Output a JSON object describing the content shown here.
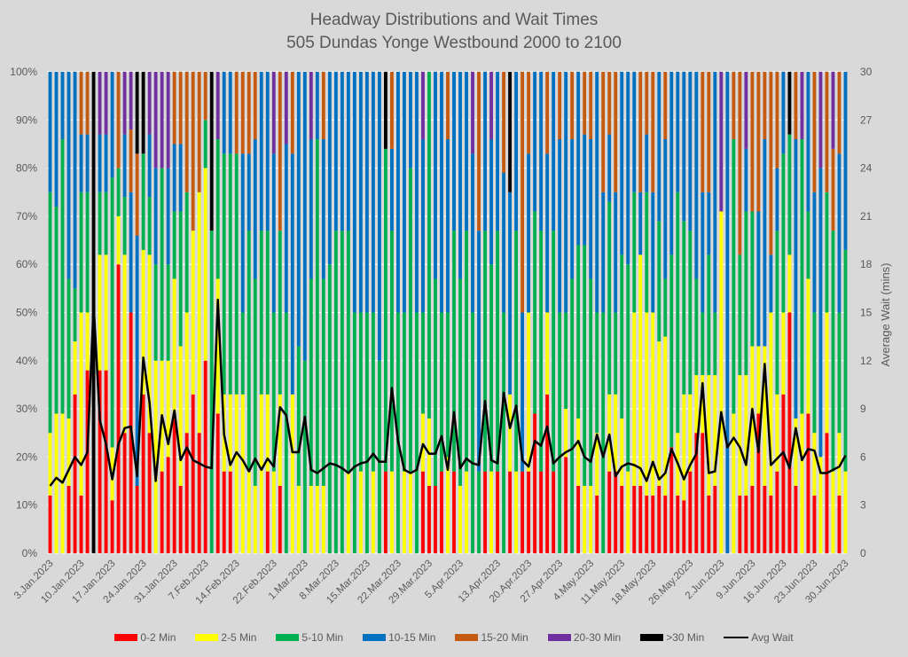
{
  "chart_data": {
    "type": "bar",
    "stacked": true,
    "title": "Headway Distributions and Wait Times",
    "subtitle": "505 Dundas  Yonge Westbound 2000 to 2100",
    "ylabel_left": "",
    "ylabel_right": "Average Wait (mins)",
    "ylim_left": [
      0,
      100
    ],
    "ylim_right": [
      0,
      30
    ],
    "left_ticks": [
      "0%",
      "10%",
      "20%",
      "30%",
      "40%",
      "50%",
      "60%",
      "70%",
      "80%",
      "90%",
      "100%"
    ],
    "right_ticks": [
      "0",
      "3",
      "6",
      "9",
      "12",
      "15",
      "18",
      "21",
      "24",
      "27",
      "30"
    ],
    "grid": true,
    "legend_position": "bottom",
    "date_range": [
      "2023-01-03",
      "2023-06-30"
    ],
    "x_tick_labels": [
      "3.Jan.2023",
      "10.Jan.2023",
      "17.Jan.2023",
      "24.Jan.2023",
      "31.Jan.2023",
      "7.Feb.2023",
      "14.Feb.2023",
      "22.Feb.2023",
      "1.Mar.2023",
      "8.Mar.2023",
      "15.Mar.2023",
      "22.Mar.2023",
      "29.Mar.2023",
      "5.Apr.2023",
      "13.Apr.2023",
      "20.Apr.2023",
      "27.Apr.2023",
      "4.May.2023",
      "11.May.2023",
      "18.May.2023",
      "26.May.2023",
      "2.Jun.2023",
      "9.Jun.2023",
      "16.Jun.2023",
      "23.Jun.2023",
      "30.Jun.2023"
    ],
    "series_names": [
      "0-2 Min",
      "2-5 Min",
      "5-10 Min",
      "10-15 Min",
      "15-20 Min",
      "20-30 Min",
      ">30 Min"
    ],
    "series_colors": [
      "#ff0000",
      "#ffff00",
      "#00b050",
      "#0070c0",
      "#c55a11",
      "#7030a0",
      "#000000"
    ],
    "line_series": {
      "name": "Avg Wait",
      "color": "#000000"
    },
    "bars": [
      [
        12,
        13,
        50,
        25,
        0,
        0,
        0
      ],
      [
        0,
        29,
        43,
        28,
        0,
        0,
        0
      ],
      [
        0,
        29,
        57,
        14,
        0,
        0,
        0
      ],
      [
        14,
        14,
        29,
        43,
        0,
        0,
        0
      ],
      [
        33,
        11,
        11,
        45,
        0,
        0,
        0
      ],
      [
        12,
        38,
        25,
        12,
        13,
        0,
        0
      ],
      [
        38,
        12,
        25,
        12,
        13,
        0,
        0
      ],
      [
        0,
        0,
        0,
        0,
        0,
        0,
        100
      ],
      [
        38,
        24,
        13,
        12,
        0,
        13,
        0
      ],
      [
        38,
        24,
        13,
        12,
        0,
        13,
        0
      ],
      [
        11,
        11,
        56,
        22,
        0,
        0,
        0
      ],
      [
        60,
        10,
        10,
        0,
        20,
        0,
        0
      ],
      [
        25,
        37,
        12,
        13,
        0,
        13,
        0
      ],
      [
        50,
        0,
        0,
        25,
        13,
        12,
        0
      ],
      [
        14,
        0,
        0,
        52,
        17,
        0,
        17
      ],
      [
        33,
        30,
        20,
        0,
        0,
        0,
        17
      ],
      [
        25,
        37,
        12,
        13,
        0,
        13,
        0
      ],
      [
        0,
        40,
        20,
        20,
        0,
        20,
        0
      ],
      [
        17,
        23,
        40,
        0,
        0,
        20,
        0
      ],
      [
        20,
        20,
        20,
        20,
        0,
        20,
        0
      ],
      [
        29,
        28,
        14,
        14,
        15,
        0,
        0
      ],
      [
        14,
        29,
        28,
        14,
        15,
        0,
        0
      ],
      [
        25,
        25,
        25,
        0,
        25,
        0,
        0
      ],
      [
        33,
        34,
        0,
        0,
        33,
        0,
        0
      ],
      [
        25,
        50,
        0,
        0,
        25,
        0,
        0
      ],
      [
        40,
        40,
        10,
        0,
        10,
        0,
        0
      ],
      [
        0,
        0,
        67,
        0,
        0,
        0,
        33
      ],
      [
        29,
        28,
        29,
        0,
        0,
        14,
        0
      ],
      [
        17,
        16,
        50,
        17,
        0,
        0,
        0
      ],
      [
        17,
        16,
        50,
        17,
        0,
        0,
        0
      ],
      [
        0,
        33,
        50,
        0,
        17,
        0,
        0
      ],
      [
        0,
        33,
        17,
        33,
        17,
        0,
        0
      ],
      [
        0,
        17,
        50,
        16,
        17,
        0,
        0
      ],
      [
        0,
        14,
        43,
        29,
        14,
        0,
        0
      ],
      [
        0,
        33,
        34,
        33,
        0,
        0,
        0
      ],
      [
        17,
        16,
        34,
        33,
        0,
        0,
        0
      ],
      [
        0,
        17,
        33,
        33,
        0,
        17,
        0
      ],
      [
        14,
        19,
        34,
        0,
        33,
        0,
        0
      ],
      [
        0,
        0,
        50,
        35,
        0,
        15,
        0
      ],
      [
        0,
        33,
        0,
        50,
        17,
        0,
        0
      ],
      [
        0,
        14,
        29,
        57,
        0,
        0,
        0
      ],
      [
        0,
        0,
        40,
        60,
        0,
        0,
        0
      ],
      [
        0,
        14,
        43,
        29,
        0,
        14,
        0
      ],
      [
        0,
        14,
        72,
        14,
        0,
        0,
        0
      ],
      [
        0,
        14,
        43,
        29,
        14,
        0,
        0
      ],
      [
        0,
        0,
        60,
        40,
        0,
        0,
        0
      ],
      [
        0,
        0,
        67,
        33,
        0,
        0,
        0
      ],
      [
        0,
        0,
        67,
        33,
        0,
        0,
        0
      ],
      [
        0,
        17,
        50,
        33,
        0,
        0,
        0
      ],
      [
        0,
        0,
        50,
        50,
        0,
        0,
        0
      ],
      [
        0,
        17,
        33,
        50,
        0,
        0,
        0
      ],
      [
        0,
        0,
        50,
        50,
        0,
        0,
        0
      ],
      [
        0,
        17,
        33,
        50,
        0,
        0,
        0
      ],
      [
        0,
        0,
        40,
        60,
        0,
        0,
        0
      ],
      [
        17,
        0,
        67,
        0,
        0,
        0,
        16
      ],
      [
        0,
        17,
        50,
        17,
        16,
        0,
        0
      ],
      [
        0,
        0,
        50,
        50,
        0,
        0,
        0
      ],
      [
        0,
        17,
        33,
        50,
        0,
        0,
        0
      ],
      [
        0,
        17,
        63,
        20,
        0,
        0,
        0
      ],
      [
        0,
        0,
        50,
        50,
        0,
        0,
        0
      ],
      [
        17,
        12,
        21,
        36,
        0,
        14,
        0
      ],
      [
        14,
        14,
        72,
        0,
        0,
        0,
        0
      ],
      [
        14,
        0,
        43,
        43,
        0,
        0,
        0
      ],
      [
        17,
        0,
        33,
        50,
        0,
        0,
        0
      ],
      [
        0,
        20,
        30,
        36,
        14,
        0,
        0
      ],
      [
        17,
        0,
        50,
        33,
        0,
        0,
        0
      ],
      [
        0,
        14,
        43,
        43,
        0,
        0,
        0
      ],
      [
        0,
        17,
        50,
        33,
        0,
        0,
        0
      ],
      [
        0,
        0,
        50,
        33,
        0,
        17,
        0
      ],
      [
        0,
        0,
        17,
        50,
        33,
        0,
        0
      ],
      [
        17,
        0,
        50,
        33,
        0,
        0,
        0
      ],
      [
        0,
        17,
        43,
        26,
        0,
        14,
        0
      ],
      [
        17,
        0,
        50,
        33,
        0,
        0,
        0
      ],
      [
        0,
        0,
        50,
        29,
        21,
        0,
        0
      ],
      [
        17,
        16,
        0,
        42,
        0,
        0,
        25
      ],
      [
        0,
        17,
        50,
        33,
        0,
        0,
        0
      ],
      [
        17,
        0,
        0,
        33,
        50,
        0,
        0
      ],
      [
        17,
        33,
        0,
        33,
        17,
        0,
        0
      ],
      [
        29,
        0,
        42,
        29,
        0,
        0,
        0
      ],
      [
        17,
        0,
        50,
        33,
        0,
        0,
        0
      ],
      [
        33,
        17,
        0,
        33,
        17,
        0,
        0
      ],
      [
        17,
        0,
        50,
        33,
        0,
        0,
        0
      ],
      [
        0,
        0,
        50,
        36,
        14,
        0,
        0
      ],
      [
        20,
        10,
        20,
        50,
        0,
        0,
        0
      ],
      [
        0,
        0,
        57,
        29,
        14,
        0,
        0
      ],
      [
        14,
        14,
        36,
        36,
        0,
        0,
        0
      ],
      [
        0,
        14,
        50,
        23,
        13,
        0,
        0
      ],
      [
        0,
        14,
        43,
        29,
        14,
        0,
        0
      ],
      [
        12,
        13,
        25,
        50,
        0,
        0,
        0
      ],
      [
        0,
        0,
        50,
        25,
        25,
        0,
        0
      ],
      [
        17,
        16,
        40,
        14,
        13,
        0,
        0
      ],
      [
        17,
        16,
        17,
        25,
        25,
        0,
        0
      ],
      [
        14,
        14,
        34,
        38,
        0,
        0,
        0
      ],
      [
        0,
        17,
        43,
        40,
        0,
        0,
        0
      ],
      [
        14,
        36,
        25,
        25,
        0,
        0,
        0
      ],
      [
        14,
        48,
        0,
        13,
        25,
        0,
        0
      ],
      [
        12,
        38,
        25,
        12,
        13,
        0,
        0
      ],
      [
        12,
        38,
        0,
        25,
        25,
        0,
        0
      ],
      [
        14,
        30,
        25,
        31,
        0,
        0,
        0
      ],
      [
        12,
        33,
        12,
        29,
        14,
        0,
        0
      ],
      [
        22,
        0,
        40,
        38,
        0,
        0,
        0
      ],
      [
        12,
        13,
        50,
        25,
        0,
        0,
        0
      ],
      [
        11,
        22,
        36,
        31,
        0,
        0,
        0
      ],
      [
        17,
        16,
        34,
        33,
        0,
        0,
        0
      ],
      [
        25,
        12,
        20,
        43,
        0,
        0,
        0
      ],
      [
        25,
        12,
        13,
        25,
        25,
        0,
        0
      ],
      [
        12,
        25,
        25,
        13,
        25,
        0,
        0
      ],
      [
        14,
        23,
        13,
        50,
        0,
        0,
        0
      ],
      [
        0,
        71,
        0,
        0,
        0,
        29,
        0
      ],
      [
        0,
        0,
        0,
        100,
        0,
        0,
        0
      ],
      [
        0,
        29,
        57,
        0,
        14,
        0,
        0
      ],
      [
        12,
        25,
        25,
        0,
        38,
        0,
        0
      ],
      [
        12,
        25,
        34,
        13,
        0,
        16,
        0
      ],
      [
        14,
        29,
        28,
        0,
        29,
        0,
        0
      ],
      [
        29,
        14,
        0,
        28,
        29,
        0,
        0
      ],
      [
        14,
        29,
        0,
        43,
        14,
        0,
        0
      ],
      [
        12,
        38,
        0,
        12,
        38,
        0,
        0
      ],
      [
        17,
        16,
        34,
        13,
        20,
        0,
        0
      ],
      [
        33,
        17,
        33,
        17,
        0,
        0,
        0
      ],
      [
        50,
        12,
        25,
        0,
        0,
        0,
        13
      ],
      [
        14,
        14,
        0,
        58,
        14,
        0,
        0
      ],
      [
        0,
        29,
        57,
        0,
        0,
        14,
        0
      ],
      [
        29,
        28,
        14,
        29,
        0,
        0,
        0
      ],
      [
        12,
        13,
        25,
        25,
        25,
        0,
        0
      ],
      [
        0,
        20,
        0,
        60,
        0,
        20,
        0
      ],
      [
        25,
        25,
        25,
        0,
        25,
        0,
        0
      ],
      [
        0,
        17,
        50,
        0,
        17,
        16,
        0
      ],
      [
        12,
        13,
        25,
        33,
        17,
        0,
        0
      ],
      [
        0,
        17,
        46,
        37,
        0,
        0,
        0
      ]
    ],
    "avg_wait": [
      4.2,
      4.7,
      4.4,
      5.2,
      6,
      5.5,
      6.3,
      15.5,
      8.3,
      6.8,
      4.6,
      6.8,
      7.8,
      7.9,
      4.8,
      12.2,
      9.4,
      4.5,
      8.6,
      6.8,
      8.9,
      5.8,
      6.6,
      5.8,
      5.6,
      5.4,
      5.3,
      15.8,
      7.4,
      5.5,
      6.3,
      5.8,
      5.1,
      5.9,
      5.2,
      5.9,
      5.4,
      9.1,
      8.6,
      6.3,
      6.3,
      8.5,
      5.2,
      5,
      5.3,
      5.6,
      5.5,
      5.3,
      5,
      5.4,
      5.6,
      5.7,
      6.2,
      5.7,
      5.7,
      10.3,
      7,
      5.2,
      5,
      5.2,
      6.8,
      6.2,
      6.2,
      7.3,
      5.2,
      8.8,
      5.3,
      5.9,
      5.6,
      5.5,
      9.5,
      5.8,
      5.6,
      10,
      7.8,
      9.2,
      5.8,
      5.4,
      7,
      6.7,
      7.9,
      5.6,
      6,
      6.3,
      6.5,
      7,
      6,
      5.7,
      7.4,
      6,
      7.4,
      4.8,
      5.4,
      5.6,
      5.5,
      5.3,
      4.5,
      5.7,
      4.6,
      5,
      6.5,
      5.6,
      4.6,
      5.5,
      6.2,
      10.6,
      5,
      5.1,
      8.8,
      6.6,
      7.2,
      6.6,
      5.5,
      9,
      6.3,
      11.8,
      5.5,
      5.9,
      6.3,
      5.3,
      7.8,
      5.8,
      6.5,
      6.4,
      5,
      5,
      5.2,
      5.4,
      6.1
    ]
  }
}
